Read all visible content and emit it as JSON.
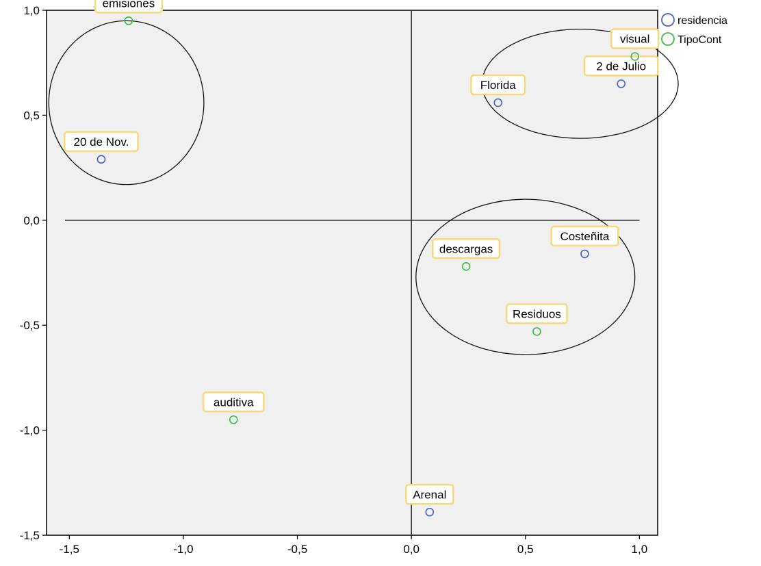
{
  "chart_data": {
    "type": "scatter",
    "xlim": [
      -1.6,
      1.08
    ],
    "ylim": [
      -1.5,
      1.0
    ],
    "x_ticks": [
      {
        "value": -1.5,
        "label": "-1,5"
      },
      {
        "value": -1.0,
        "label": "-1,0"
      },
      {
        "value": -0.5,
        "label": "-0,5"
      },
      {
        "value": 0.0,
        "label": "0,0"
      },
      {
        "value": 0.5,
        "label": "0,5"
      },
      {
        "value": 1.0,
        "label": "1,0"
      }
    ],
    "y_ticks": [
      {
        "value": 1.0,
        "label": "1,0"
      },
      {
        "value": 0.5,
        "label": "0,5"
      },
      {
        "value": 0.0,
        "label": "0,0"
      },
      {
        "value": -0.5,
        "label": "-0,5"
      },
      {
        "value": -1.0,
        "label": "-1,0"
      },
      {
        "value": -1.5,
        "label": "-1,5"
      }
    ],
    "grid": false,
    "reference_lines": {
      "x": 0,
      "y": 0
    },
    "legend_position": "top-right",
    "series": [
      {
        "name": "residencia",
        "color": "#4a5fc1",
        "points": [
          {
            "label": "20 de Nov.",
            "x": -1.36,
            "y": 0.29
          },
          {
            "label": "Florida",
            "x": 0.38,
            "y": 0.56
          },
          {
            "label": "2 de Julio",
            "x": 0.92,
            "y": 0.65
          },
          {
            "label": "Costeñita",
            "x": 0.76,
            "y": -0.16
          },
          {
            "label": "Arenal",
            "x": 0.08,
            "y": -1.39
          }
        ]
      },
      {
        "name": "TipoCont",
        "color": "#3cb843",
        "points": [
          {
            "label": "emisiones",
            "x": -1.24,
            "y": 0.95
          },
          {
            "label": "visual",
            "x": 0.98,
            "y": 0.78
          },
          {
            "label": "descargas",
            "x": 0.24,
            "y": -0.22
          },
          {
            "label": "Residuos",
            "x": 0.55,
            "y": -0.53
          },
          {
            "label": "auditiva",
            "x": -0.78,
            "y": -0.95
          }
        ]
      }
    ],
    "annotations": [
      {
        "shape": "ellipse",
        "center": [
          -1.25,
          0.56
        ],
        "radii": [
          0.34,
          0.39
        ]
      },
      {
        "shape": "ellipse",
        "center": [
          0.74,
          0.65
        ],
        "radii": [
          0.43,
          0.26
        ]
      },
      {
        "shape": "ellipse",
        "center": [
          0.5,
          -0.27
        ],
        "radii": [
          0.48,
          0.37
        ]
      }
    ]
  }
}
